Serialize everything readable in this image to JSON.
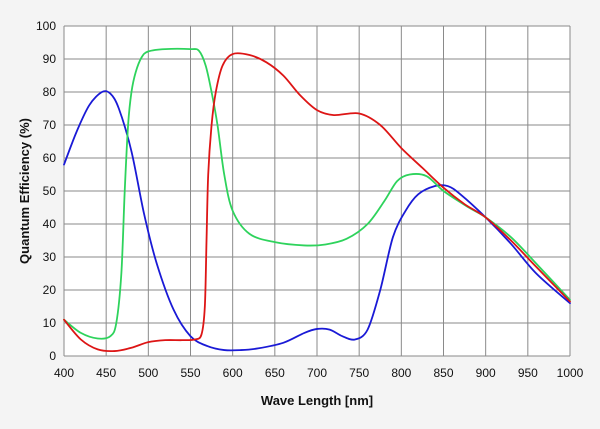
{
  "chart_data": {
    "type": "line",
    "title": "",
    "xlabel": "Wave Length [nm]",
    "ylabel": "Quantum Efficiency  (%)",
    "xlim": [
      400,
      1000
    ],
    "ylim": [
      0,
      100
    ],
    "x_ticks": [
      400,
      450,
      500,
      550,
      600,
      650,
      700,
      750,
      800,
      850,
      900,
      950,
      1000
    ],
    "y_ticks": [
      0,
      10,
      20,
      30,
      40,
      50,
      60,
      70,
      80,
      90,
      100
    ],
    "grid": true,
    "series": [
      {
        "name": "Blue",
        "color": "#1a1ad6",
        "points": [
          [
            400,
            58
          ],
          [
            415,
            68
          ],
          [
            430,
            76
          ],
          [
            445,
            80
          ],
          [
            455,
            79.5
          ],
          [
            465,
            75
          ],
          [
            480,
            62
          ],
          [
            495,
            43
          ],
          [
            510,
            28
          ],
          [
            530,
            14
          ],
          [
            550,
            6
          ],
          [
            570,
            3
          ],
          [
            590,
            1.8
          ],
          [
            610,
            1.8
          ],
          [
            630,
            2.3
          ],
          [
            660,
            4
          ],
          [
            685,
            7
          ],
          [
            700,
            8.2
          ],
          [
            715,
            8
          ],
          [
            730,
            6
          ],
          [
            745,
            5
          ],
          [
            760,
            8
          ],
          [
            775,
            20
          ],
          [
            790,
            36
          ],
          [
            805,
            44
          ],
          [
            820,
            49
          ],
          [
            840,
            51.5
          ],
          [
            855,
            51.5
          ],
          [
            870,
            49
          ],
          [
            900,
            42
          ],
          [
            930,
            34
          ],
          [
            960,
            25
          ],
          [
            1000,
            16
          ]
        ]
      },
      {
        "name": "Green",
        "color": "#2ed35c",
        "points": [
          [
            400,
            11
          ],
          [
            420,
            7
          ],
          [
            440,
            5.3
          ],
          [
            455,
            6
          ],
          [
            462,
            10
          ],
          [
            468,
            25
          ],
          [
            472,
            50
          ],
          [
            476,
            70
          ],
          [
            480,
            80
          ],
          [
            485,
            86
          ],
          [
            492,
            90.5
          ],
          [
            500,
            92.3
          ],
          [
            520,
            93
          ],
          [
            550,
            93
          ],
          [
            560,
            92.5
          ],
          [
            568,
            88
          ],
          [
            575,
            80
          ],
          [
            582,
            70
          ],
          [
            590,
            55
          ],
          [
            600,
            44
          ],
          [
            620,
            37
          ],
          [
            650,
            34.5
          ],
          [
            685,
            33.5
          ],
          [
            710,
            33.8
          ],
          [
            735,
            35.5
          ],
          [
            760,
            40
          ],
          [
            780,
            47
          ],
          [
            795,
            53
          ],
          [
            810,
            55
          ],
          [
            830,
            54.5
          ],
          [
            850,
            50
          ],
          [
            880,
            45
          ],
          [
            900,
            42
          ],
          [
            930,
            36
          ],
          [
            960,
            28
          ],
          [
            1000,
            17
          ]
        ]
      },
      {
        "name": "Red",
        "color": "#dd1515",
        "points": [
          [
            400,
            11
          ],
          [
            420,
            5
          ],
          [
            440,
            2
          ],
          [
            460,
            1.5
          ],
          [
            480,
            2.5
          ],
          [
            500,
            4.2
          ],
          [
            520,
            4.8
          ],
          [
            540,
            4.8
          ],
          [
            555,
            5
          ],
          [
            563,
            6.5
          ],
          [
            567,
            15
          ],
          [
            569,
            35
          ],
          [
            571,
            55
          ],
          [
            575,
            70
          ],
          [
            580,
            80
          ],
          [
            588,
            88
          ],
          [
            600,
            91.5
          ],
          [
            620,
            91.2
          ],
          [
            640,
            89
          ],
          [
            660,
            85
          ],
          [
            680,
            79
          ],
          [
            700,
            74.5
          ],
          [
            720,
            73
          ],
          [
            750,
            73.5
          ],
          [
            775,
            70
          ],
          [
            800,
            63
          ],
          [
            825,
            57
          ],
          [
            850,
            51
          ],
          [
            875,
            46
          ],
          [
            900,
            42
          ],
          [
            930,
            35
          ],
          [
            960,
            27
          ],
          [
            1000,
            16.5
          ]
        ]
      }
    ]
  }
}
